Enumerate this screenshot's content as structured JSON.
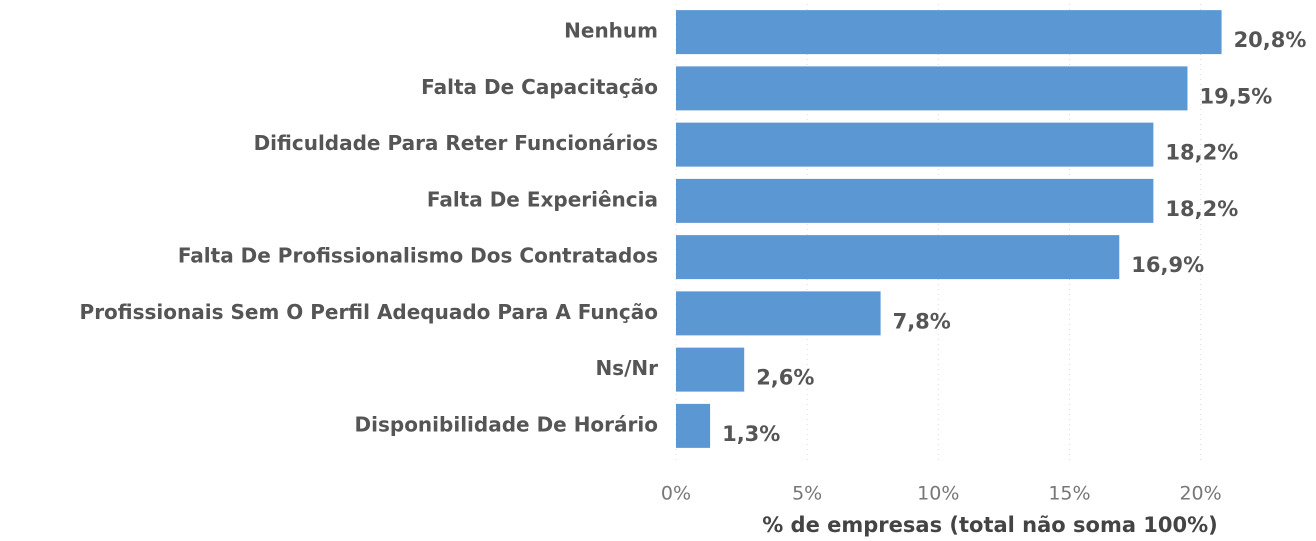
{
  "chart_data": {
    "type": "bar",
    "orientation": "horizontal",
    "x_label": "% de empresas (total não soma 100%)",
    "categories": [
      "Nenhum",
      "Falta De Capacitação",
      "Dificuldade Para Reter Funcionários",
      "Falta De Experiência",
      "Falta De Profissionalismo Dos Contratados",
      "Profissionais Sem O Perfil Adequado Para A Função",
      "Ns/Nr",
      "Disponibilidade De Horário"
    ],
    "values": [
      20.8,
      19.5,
      18.2,
      18.2,
      16.9,
      7.8,
      2.6,
      1.3
    ],
    "value_labels": [
      "20,8%",
      "19,5%",
      "18,2%",
      "18,2%",
      "16,9%",
      "7,8%",
      "2,6%",
      "1,3%"
    ],
    "color": "#5b97d3",
    "xlim": [
      0,
      24.4
    ],
    "xticks": [
      {
        "value": 0,
        "label": "0%"
      },
      {
        "value": 5,
        "label": "5%"
      },
      {
        "value": 10,
        "label": "10%"
      },
      {
        "value": 15,
        "label": "15%"
      },
      {
        "value": 20,
        "label": "20%"
      }
    ],
    "grid": true
  }
}
